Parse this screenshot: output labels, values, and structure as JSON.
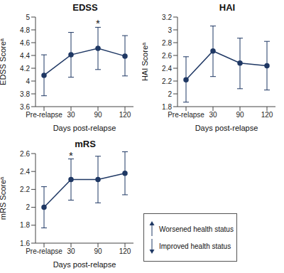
{
  "chart_data": [
    {
      "type": "line",
      "title": "EDSS",
      "x_label": "Days post-relapse",
      "y_label": "EDSS Scoreᵃ",
      "categories": [
        "Pre-relapse",
        "30",
        "90",
        "120"
      ],
      "values": [
        4.09,
        4.41,
        4.51,
        4.39
      ],
      "ci_low": [
        3.77,
        4.06,
        4.18,
        4.08
      ],
      "ci_high": [
        4.41,
        4.76,
        4.84,
        4.71
      ],
      "color": "#1f3864",
      "marker": "circle",
      "ylim": [
        3.6,
        5.0
      ],
      "yticks": [
        3.6,
        3.8,
        4,
        4.2,
        4.4,
        4.6,
        4.8,
        5
      ],
      "annotations": [
        {
          "x": "90",
          "text": "*"
        }
      ]
    },
    {
      "type": "line",
      "title": "HAI",
      "x_label": "Days post-relapse",
      "y_label": "HAI Scoreᵃ",
      "categories": [
        "Pre-relapse",
        "30",
        "90",
        "120"
      ],
      "values": [
        2.22,
        2.67,
        2.48,
        2.44
      ],
      "ci_low": [
        1.87,
        2.27,
        2.08,
        2.06
      ],
      "ci_high": [
        2.58,
        3.06,
        2.87,
        2.82
      ],
      "color": "#1f3864",
      "marker": "circle",
      "ylim": [
        1.8,
        3.2
      ],
      "yticks": [
        1.8,
        2,
        2.2,
        2.4,
        2.6,
        2.8,
        3,
        3.2
      ],
      "annotations": []
    },
    {
      "type": "line",
      "title": "mRS",
      "x_label": "Days post-relapse",
      "y_label": "mRS Scoreᵃ",
      "categories": [
        "Pre-relapse",
        "30",
        "90",
        "120"
      ],
      "values": [
        2.0,
        2.31,
        2.31,
        2.38
      ],
      "ci_low": [
        1.77,
        2.08,
        2.05,
        2.14
      ],
      "ci_high": [
        2.23,
        2.54,
        2.57,
        2.62
      ],
      "color": "#1f3864",
      "marker": "circle",
      "ylim": [
        1.6,
        2.6
      ],
      "yticks": [
        1.6,
        1.8,
        2,
        2.2,
        2.4,
        2.6
      ],
      "annotations": [
        {
          "x": "30",
          "text": "*"
        }
      ]
    }
  ],
  "key": {
    "items": [
      {
        "text": "Worsened health status",
        "direction": "up"
      },
      {
        "text": "Improved health status",
        "direction": "down"
      }
    ],
    "color": "#1f3864"
  }
}
